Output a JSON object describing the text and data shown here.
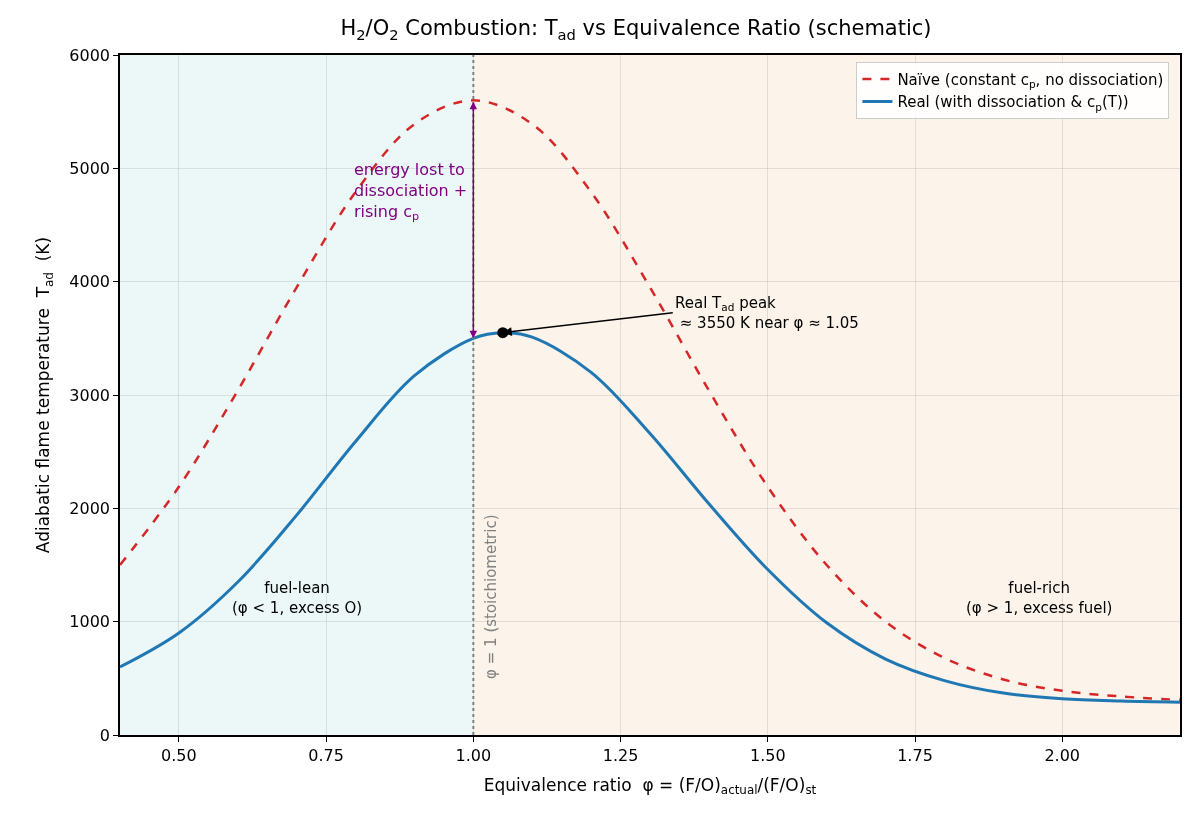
{
  "chart_data": {
    "type": "line",
    "title": "H$_{2}$/O$_{2}$ Combustion: T$_{ad}$ vs Equivalence Ratio (schematic)",
    "xlabel": "Equivalence ratio  φ = (F/O)$_{actual}$/(F/O)$_{st}$",
    "ylabel": "Adiabatic flame temperature  T$_{ad}$  (K)",
    "series": [
      {
        "name": "Naïve (constant c$_{p}$, no dissociation)",
        "color": "#d62728",
        "line_style": "dashed",
        "x": [
          0.4,
          0.5,
          0.6,
          0.7,
          0.8,
          0.9,
          1.0,
          1.1,
          1.2,
          1.3,
          1.4,
          1.5,
          1.6,
          1.7,
          1.8,
          1.9,
          2.0,
          2.1,
          2.2
        ],
        "values": [
          1500,
          2190,
          3040,
          3950,
          4790,
          5390,
          5600,
          5390,
          4790,
          3950,
          3040,
          2190,
          1500,
          1000,
          680,
          490,
          390,
          340,
          310
        ]
      },
      {
        "name": "Real (with dissociation & c$_{p}$(T))",
        "color": "#1f77b4",
        "line_style": "solid",
        "x": [
          0.4,
          0.5,
          0.6,
          0.7,
          0.8,
          0.9,
          1.0,
          1.05,
          1.1,
          1.2,
          1.3,
          1.4,
          1.5,
          1.6,
          1.7,
          1.8,
          1.9,
          2.0,
          2.1,
          2.2
        ],
        "values": [
          600,
          900,
          1350,
          1940,
          2590,
          3170,
          3500,
          3550,
          3510,
          3200,
          2660,
          2040,
          1460,
          990,
          670,
          480,
          370,
          320,
          300,
          290
        ]
      },
      {
        "type": "scatter",
        "color": "#000000",
        "marker": "circle",
        "x": [
          1.05
        ],
        "values": [
          3550
        ]
      }
    ],
    "xlim": [
      0.4,
      2.2
    ],
    "xticks": [
      {
        "value": 0.5,
        "label": "0.50"
      },
      {
        "value": 0.75,
        "label": "0.75"
      },
      {
        "value": 1.0,
        "label": "1.00"
      },
      {
        "value": 1.25,
        "label": "1.25"
      },
      {
        "value": 1.5,
        "label": "1.50"
      },
      {
        "value": 1.75,
        "label": "1.75"
      },
      {
        "value": 2.0,
        "label": "2.00"
      }
    ],
    "ylim": [
      0,
      6000
    ],
    "yticks": [
      0,
      1000,
      2000,
      3000,
      4000,
      5000,
      6000
    ],
    "grid": true,
    "legend": "top right",
    "ref_lines": [
      {
        "axis": "x",
        "value": 1.0,
        "label": "φ = 1 (stoichiometric)",
        "color": "#808080",
        "line_style": "dotted"
      }
    ],
    "bands": [
      {
        "axis": "x",
        "from": 0.4,
        "to": 1.0,
        "label": "fuel-lean\n(φ < 1, excess O)",
        "color": "#ecf8f8"
      },
      {
        "axis": "x",
        "from": 1.0,
        "to": 2.2,
        "label": "fuel-rich\n(φ > 1, excess fuel)",
        "color": "#fcf3ea"
      }
    ],
    "annotations": [
      {
        "text": "Real T$_{ad}$ peak\n ≈ 3550 K near φ ≈ 1.05",
        "x": 1.05,
        "y": 3550
      },
      {
        "text": "energy lost to\ndissociation +\nrising c$_{p}$",
        "x": 1.0,
        "y": 4800
      }
    ]
  }
}
